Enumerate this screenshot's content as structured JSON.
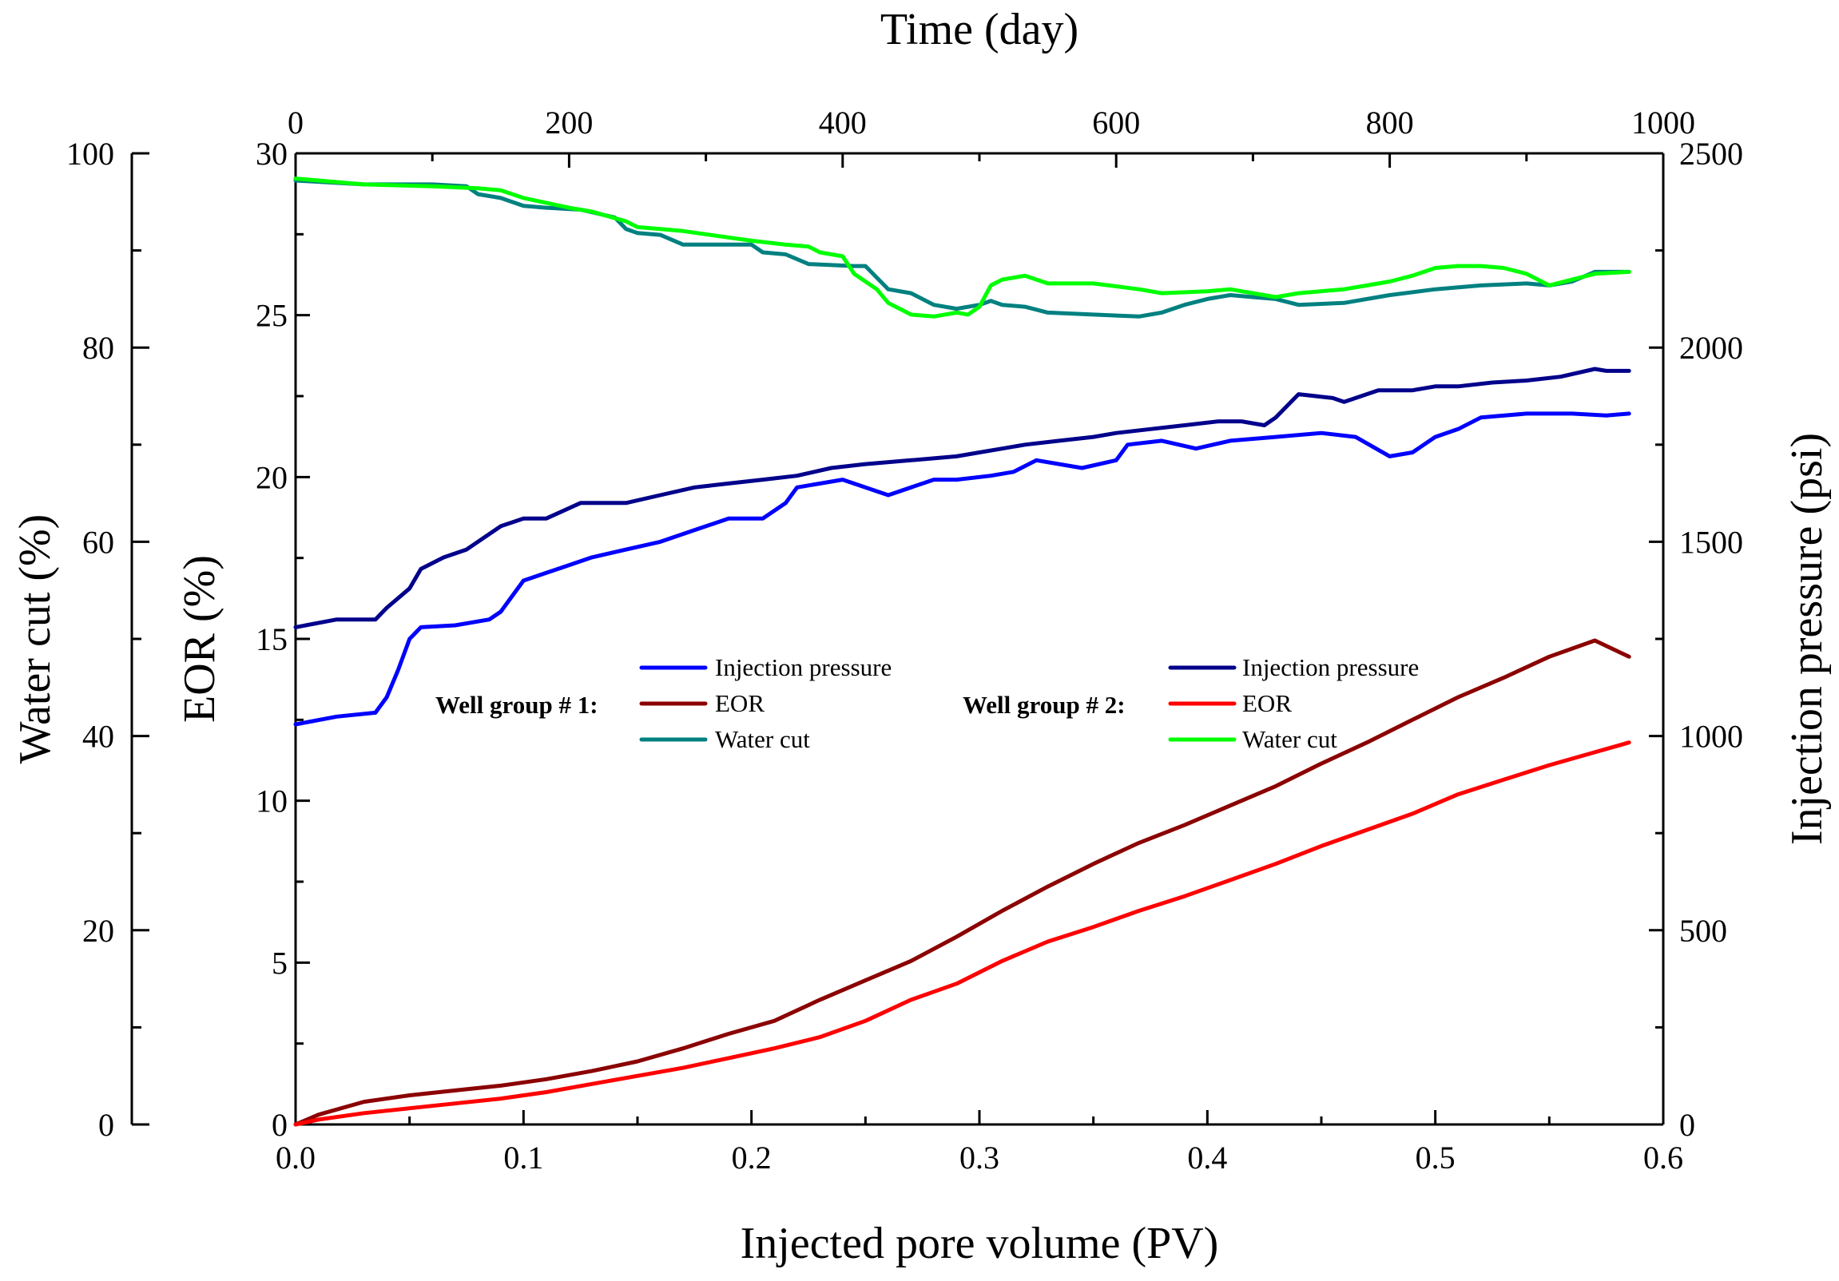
{
  "chart_data": {
    "type": "line",
    "title": "",
    "xlabel": "Injected pore volume (PV)",
    "x2label": "Time (day)",
    "ylabel": "EOR (%)",
    "y2label": "Water cut (%)",
    "y3label": "Injection pressure (psi)",
    "xlim": [
      0,
      0.6
    ],
    "x2lim": [
      0,
      1000
    ],
    "ylim": [
      0,
      30
    ],
    "y2lim": [
      0,
      100
    ],
    "y3lim": [
      0,
      2500
    ],
    "xticks": [
      "0.0",
      "0.1",
      "0.2",
      "0.3",
      "0.4",
      "0.5",
      "0.6"
    ],
    "x2ticks": [
      "0",
      "200",
      "400",
      "600",
      "800",
      "1000"
    ],
    "yticks": [
      "0",
      "5",
      "10",
      "15",
      "20",
      "25",
      "30"
    ],
    "y2ticks": [
      "0",
      "20",
      "40",
      "60",
      "80",
      "100"
    ],
    "y3ticks": [
      "0",
      "500",
      "1000",
      "1500",
      "2000",
      "2500"
    ],
    "legend": {
      "group1_label": "Well group # 1:",
      "group2_label": "Well group # 2:",
      "group1": [
        {
          "name": "Injection pressure",
          "color": "#0000ff"
        },
        {
          "name": "EOR",
          "color": "#8b0000"
        },
        {
          "name": "Water cut",
          "color": "#008080"
        }
      ],
      "group2": [
        {
          "name": "Injection pressure",
          "color": "#00008b"
        },
        {
          "name": "EOR",
          "color": "#ff0000"
        },
        {
          "name": "Water cut",
          "color": "#00ff00"
        }
      ]
    },
    "series": [
      {
        "name": "Well group # 1 EOR",
        "axis": "EOR (%)",
        "color": "#8b0000",
        "x": [
          0,
          0.01,
          0.03,
          0.05,
          0.07,
          0.09,
          0.11,
          0.13,
          0.15,
          0.17,
          0.19,
          0.21,
          0.23,
          0.25,
          0.27,
          0.29,
          0.31,
          0.33,
          0.35,
          0.37,
          0.39,
          0.41,
          0.43,
          0.45,
          0.47,
          0.49,
          0.51,
          0.53,
          0.55,
          0.57,
          0.585
        ],
        "values": [
          0,
          0.3,
          0.7,
          0.9,
          1.05,
          1.2,
          1.4,
          1.65,
          1.95,
          2.35,
          2.8,
          3.2,
          3.85,
          4.45,
          5.05,
          5.8,
          6.6,
          7.35,
          8.05,
          8.7,
          9.25,
          9.85,
          10.45,
          11.15,
          11.8,
          12.5,
          13.2,
          13.8,
          14.45,
          14.95,
          14.45
        ]
      },
      {
        "name": "Well group # 2 EOR",
        "axis": "EOR (%)",
        "color": "#ff0000",
        "x": [
          0,
          0.01,
          0.03,
          0.05,
          0.07,
          0.09,
          0.11,
          0.13,
          0.15,
          0.17,
          0.19,
          0.21,
          0.23,
          0.25,
          0.27,
          0.29,
          0.31,
          0.33,
          0.35,
          0.37,
          0.39,
          0.41,
          0.43,
          0.45,
          0.47,
          0.49,
          0.51,
          0.53,
          0.55,
          0.57,
          0.585
        ],
        "values": [
          0,
          0.15,
          0.35,
          0.5,
          0.65,
          0.8,
          1.0,
          1.25,
          1.5,
          1.75,
          2.05,
          2.35,
          2.7,
          3.2,
          3.85,
          4.35,
          5.05,
          5.65,
          6.1,
          6.6,
          7.05,
          7.55,
          8.05,
          8.6,
          9.1,
          9.6,
          10.2,
          10.65,
          11.1,
          11.5,
          11.8
        ]
      },
      {
        "name": "Well group # 1 Injection pressure",
        "axis": "Injection pressure (psi)",
        "color": "#0000ff",
        "x": [
          0,
          0.018,
          0.035,
          0.04,
          0.045,
          0.05,
          0.055,
          0.07,
          0.085,
          0.09,
          0.1,
          0.11,
          0.12,
          0.13,
          0.145,
          0.16,
          0.175,
          0.19,
          0.205,
          0.215,
          0.22,
          0.24,
          0.26,
          0.28,
          0.29,
          0.305,
          0.315,
          0.325,
          0.345,
          0.36,
          0.365,
          0.38,
          0.395,
          0.41,
          0.43,
          0.45,
          0.465,
          0.48,
          0.49,
          0.5,
          0.51,
          0.52,
          0.54,
          0.56,
          0.575,
          0.585
        ],
        "values": [
          1030,
          1050,
          1060,
          1100,
          1170,
          1250,
          1280,
          1285,
          1300,
          1320,
          1400,
          1420,
          1440,
          1460,
          1480,
          1500,
          1530,
          1560,
          1560,
          1600,
          1640,
          1660,
          1620,
          1660,
          1660,
          1670,
          1680,
          1710,
          1690,
          1710,
          1750,
          1760,
          1740,
          1760,
          1770,
          1780,
          1770,
          1720,
          1730,
          1770,
          1790,
          1820,
          1830,
          1830,
          1825,
          1830
        ]
      },
      {
        "name": "Well group # 2 Injection pressure",
        "axis": "Injection pressure (psi)",
        "color": "#00008b",
        "x": [
          0,
          0.018,
          0.035,
          0.04,
          0.05,
          0.055,
          0.065,
          0.075,
          0.09,
          0.1,
          0.11,
          0.125,
          0.145,
          0.16,
          0.175,
          0.19,
          0.205,
          0.22,
          0.235,
          0.25,
          0.27,
          0.29,
          0.3,
          0.31,
          0.32,
          0.335,
          0.35,
          0.36,
          0.375,
          0.39,
          0.405,
          0.415,
          0.425,
          0.43,
          0.44,
          0.455,
          0.46,
          0.475,
          0.49,
          0.5,
          0.51,
          0.525,
          0.54,
          0.555,
          0.57,
          0.575,
          0.585
        ],
        "values": [
          1280,
          1300,
          1300,
          1330,
          1380,
          1430,
          1460,
          1480,
          1540,
          1560,
          1560,
          1600,
          1600,
          1620,
          1640,
          1650,
          1660,
          1670,
          1690,
          1700,
          1710,
          1720,
          1730,
          1740,
          1750,
          1760,
          1770,
          1780,
          1790,
          1800,
          1810,
          1810,
          1800,
          1820,
          1880,
          1870,
          1860,
          1890,
          1890,
          1900,
          1900,
          1910,
          1915,
          1925,
          1945,
          1940,
          1940
        ]
      },
      {
        "name": "Well group # 1 Water cut",
        "axis": "Water cut (%)",
        "color": "#008080",
        "x": [
          0,
          0.03,
          0.06,
          0.075,
          0.08,
          0.09,
          0.1,
          0.11,
          0.125,
          0.14,
          0.145,
          0.15,
          0.16,
          0.17,
          0.2,
          0.205,
          0.215,
          0.225,
          0.245,
          0.25,
          0.26,
          0.27,
          0.28,
          0.29,
          0.3,
          0.305,
          0.31,
          0.32,
          0.33,
          0.35,
          0.37,
          0.38,
          0.39,
          0.4,
          0.41,
          0.42,
          0.43,
          0.44,
          0.46,
          0.48,
          0.5,
          0.52,
          0.54,
          0.55,
          0.56,
          0.57,
          0.585
        ],
        "values": [
          97.2,
          96.8,
          96.8,
          96.6,
          95.8,
          95.4,
          94.6,
          94.4,
          94.2,
          93.4,
          92.2,
          91.8,
          91.6,
          90.6,
          90.6,
          89.8,
          89.6,
          88.6,
          88.4,
          88.4,
          86.0,
          85.6,
          84.4,
          84.0,
          84.4,
          84.8,
          84.4,
          84.2,
          83.6,
          83.4,
          83.2,
          83.6,
          84.4,
          85.0,
          85.4,
          85.2,
          85.0,
          84.4,
          84.6,
          85.4,
          86.0,
          86.4,
          86.6,
          86.4,
          86.8,
          87.8,
          87.8
        ]
      },
      {
        "name": "Well group # 2 Water cut",
        "axis": "Water cut (%)",
        "color": "#00ff00",
        "x": [
          0,
          0.03,
          0.06,
          0.08,
          0.09,
          0.1,
          0.12,
          0.13,
          0.145,
          0.15,
          0.16,
          0.17,
          0.2,
          0.215,
          0.225,
          0.23,
          0.24,
          0.245,
          0.255,
          0.26,
          0.27,
          0.28,
          0.29,
          0.295,
          0.3,
          0.305,
          0.31,
          0.32,
          0.33,
          0.35,
          0.37,
          0.38,
          0.4,
          0.41,
          0.42,
          0.43,
          0.44,
          0.46,
          0.47,
          0.48,
          0.49,
          0.5,
          0.51,
          0.52,
          0.53,
          0.54,
          0.55,
          0.56,
          0.57,
          0.585
        ],
        "values": [
          97.4,
          96.8,
          96.6,
          96.4,
          96.2,
          95.4,
          94.4,
          94.0,
          93.0,
          92.4,
          92.2,
          92.0,
          91.0,
          90.6,
          90.4,
          89.8,
          89.4,
          87.6,
          86.0,
          84.6,
          83.4,
          83.2,
          83.6,
          83.4,
          84.2,
          86.4,
          87.0,
          87.4,
          86.6,
          86.6,
          86.0,
          85.6,
          85.8,
          86.0,
          85.6,
          85.2,
          85.6,
          86.0,
          86.4,
          86.8,
          87.4,
          88.2,
          88.4,
          88.4,
          88.2,
          87.6,
          86.4,
          87.0,
          87.6,
          87.8
        ]
      }
    ]
  }
}
